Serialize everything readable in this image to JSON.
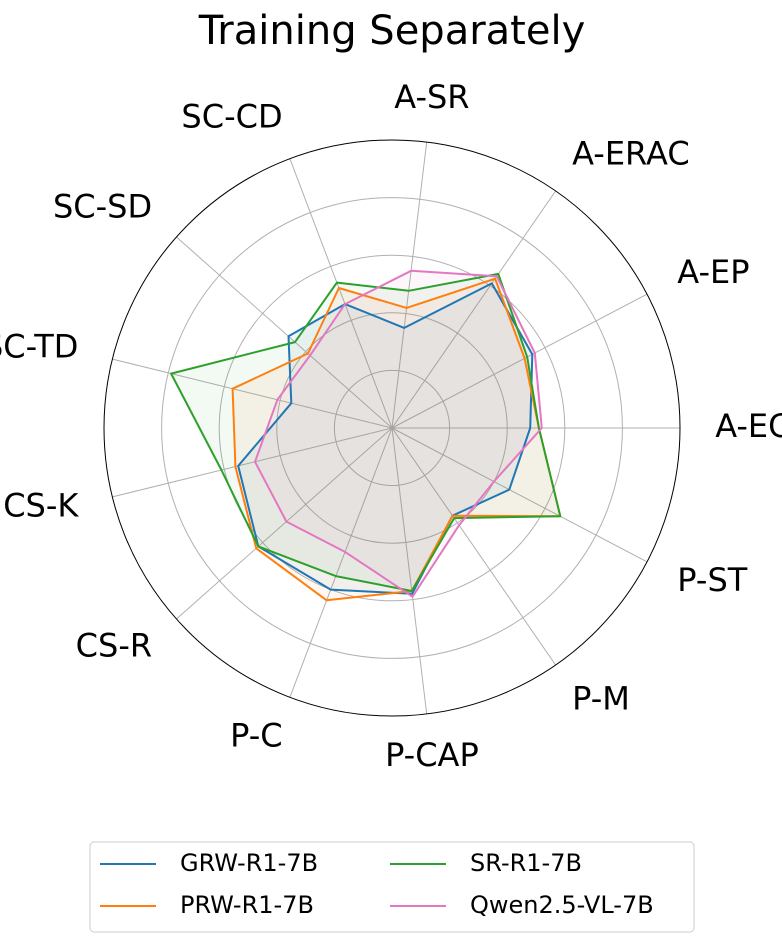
{
  "chart_data": {
    "type": "radar",
    "title": "Training Separately",
    "axes": [
      "A-EC",
      "A-EP",
      "A-ERAC",
      "A-SR",
      "SC-CD",
      "SC-SD",
      "SC-TD",
      "CS-K",
      "CS-R",
      "P-C",
      "P-CAP",
      "P-M",
      "P-ST"
    ],
    "r_range": [
      0,
      1
    ],
    "rings": [
      0.2,
      0.4,
      0.6,
      0.8
    ],
    "grid": true,
    "legend_placement": "bottom",
    "series": [
      {
        "name": "GRW-R1-7B",
        "color": "#1f77b4",
        "values": [
          0.48,
          0.55,
          0.61,
          0.35,
          0.46,
          0.48,
          0.36,
          0.55,
          0.62,
          0.6,
          0.58,
          0.37,
          0.46
        ]
      },
      {
        "name": "PRW-R1-7B",
        "color": "#ff7f0e",
        "values": [
          0.51,
          0.52,
          0.63,
          0.42,
          0.52,
          0.39,
          0.57,
          0.56,
          0.63,
          0.64,
          0.57,
          0.37,
          0.66
        ]
      },
      {
        "name": "SR-R1-7B",
        "color": "#2ca02c",
        "values": [
          0.51,
          0.53,
          0.65,
          0.48,
          0.54,
          0.45,
          0.79,
          0.61,
          0.62,
          0.55,
          0.57,
          0.38,
          0.66
        ]
      },
      {
        "name": "Qwen2.5-VL-7B",
        "color": "#e377c2",
        "values": [
          0.52,
          0.56,
          0.64,
          0.55,
          0.46,
          0.38,
          0.41,
          0.49,
          0.49,
          0.46,
          0.59,
          0.41,
          0.4
        ]
      }
    ]
  }
}
